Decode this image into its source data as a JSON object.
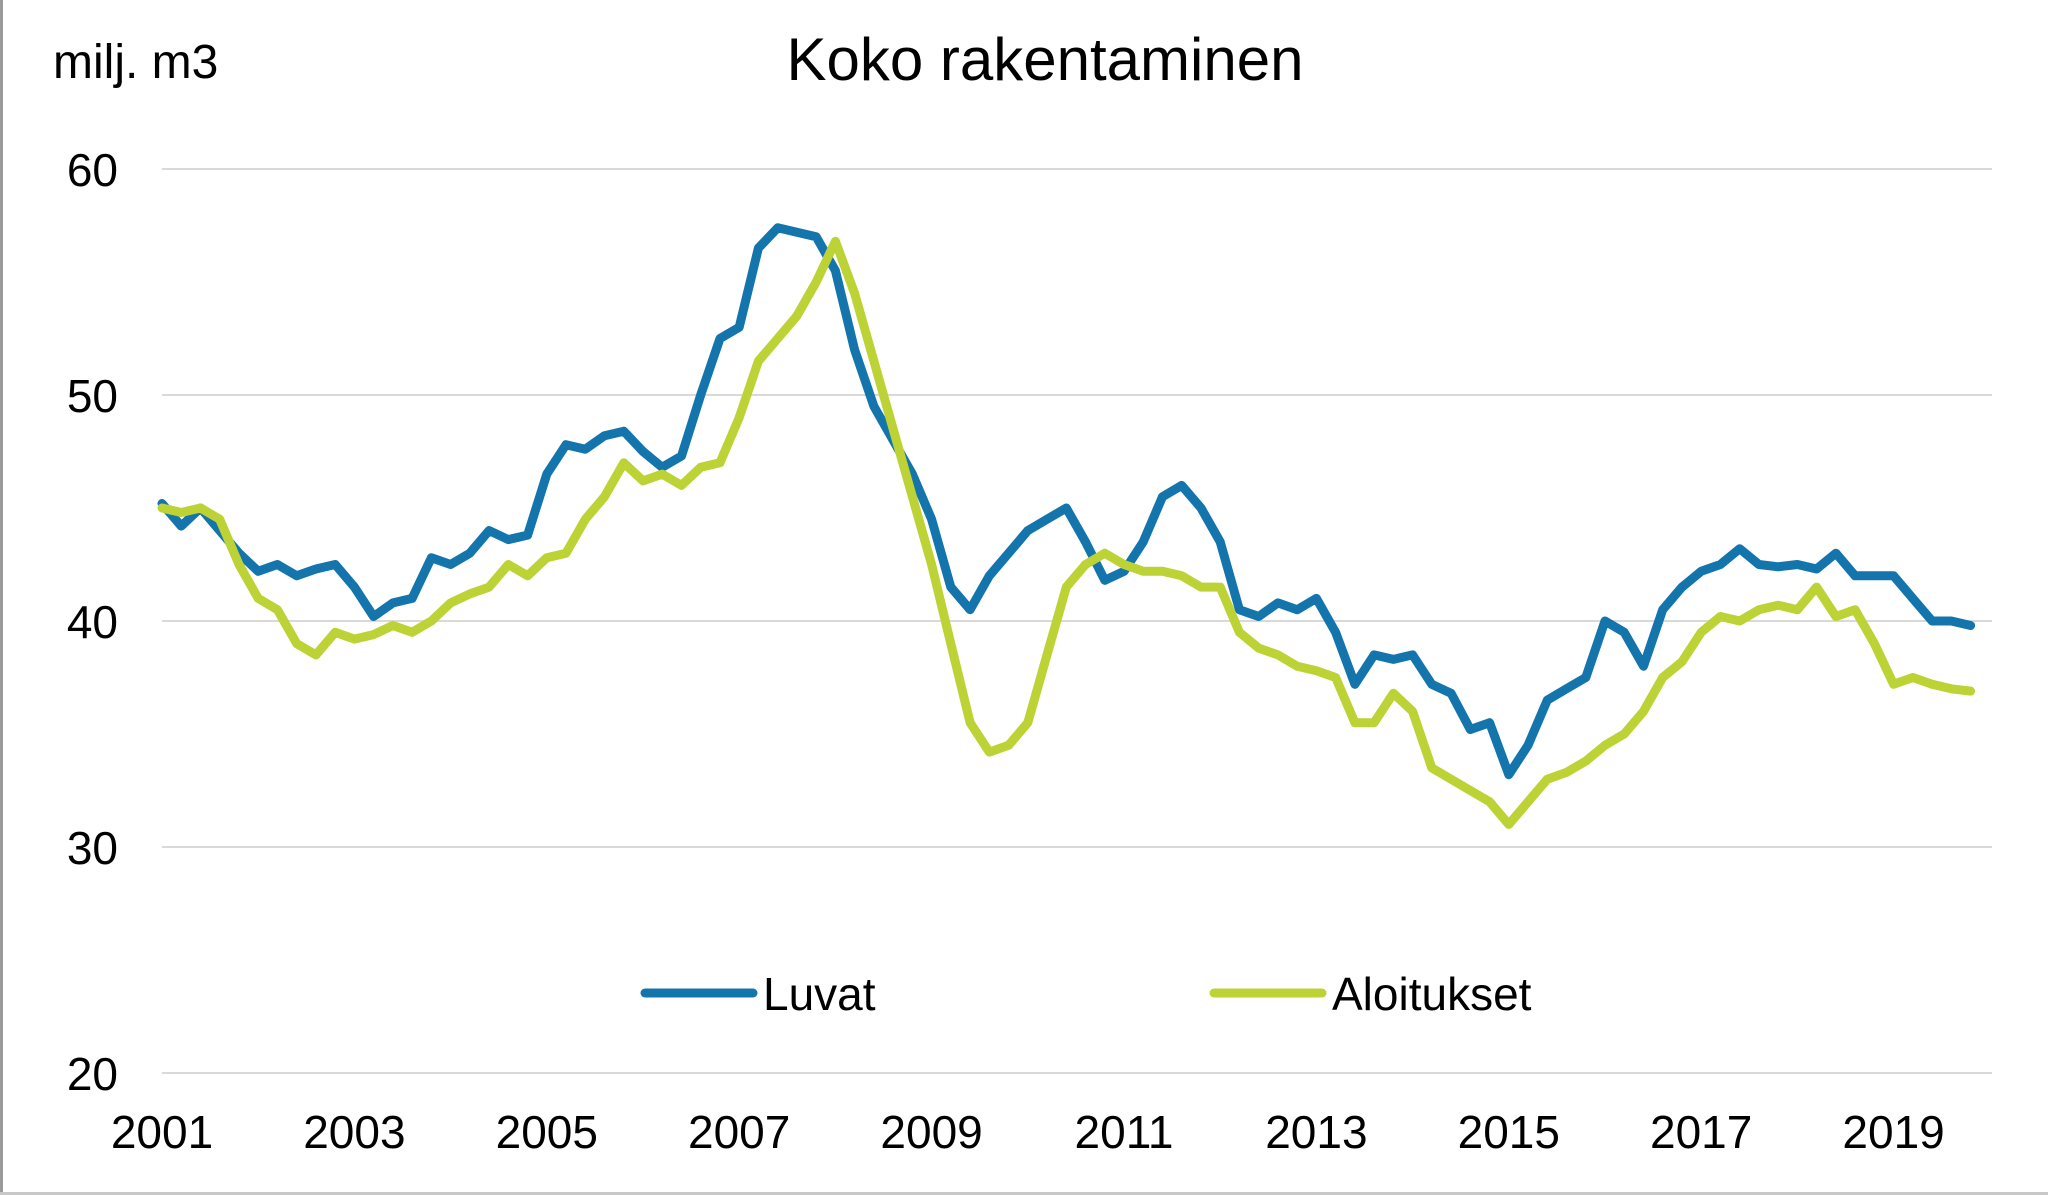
{
  "chart_data": {
    "type": "line",
    "title": "Koko rakentaminen",
    "ylabel": "milj. m3",
    "xlabel": "",
    "ylim": [
      20,
      60
    ],
    "xlim": [
      2001,
      2020
    ],
    "yticks": [
      "20",
      "30",
      "40",
      "50",
      "60"
    ],
    "ytick_values": [
      20,
      30,
      40,
      50,
      60
    ],
    "xticks": [
      "2001",
      "2003",
      "2005",
      "2007",
      "2009",
      "2011",
      "2013",
      "2015",
      "2017",
      "2019"
    ],
    "xtick_values": [
      2001,
      2003,
      2005,
      2007,
      2009,
      2011,
      2013,
      2015,
      2017,
      2019
    ],
    "grid": true,
    "legend_position": "bottom-center",
    "series": [
      {
        "name": "Luvat",
        "color": "#1474ac",
        "x": [
          2001.0,
          2001.2,
          2001.4,
          2001.6,
          2001.8,
          2002.0,
          2002.2,
          2002.4,
          2002.6,
          2002.8,
          2003.0,
          2003.2,
          2003.4,
          2003.6,
          2003.8,
          2004.0,
          2004.2,
          2004.4,
          2004.6,
          2004.8,
          2005.0,
          2005.2,
          2005.4,
          2005.6,
          2005.8,
          2006.0,
          2006.2,
          2006.4,
          2006.6,
          2006.8,
          2007.0,
          2007.2,
          2007.4,
          2007.6,
          2007.8,
          2008.0,
          2008.2,
          2008.4,
          2008.6,
          2008.8,
          2009.0,
          2009.2,
          2009.4,
          2009.6,
          2009.8,
          2010.0,
          2010.2,
          2010.4,
          2010.6,
          2010.8,
          2011.0,
          2011.2,
          2011.4,
          2011.6,
          2011.8,
          2012.0,
          2012.2,
          2012.4,
          2012.6,
          2012.8,
          2013.0,
          2013.2,
          2013.4,
          2013.6,
          2013.8,
          2014.0,
          2014.2,
          2014.4,
          2014.6,
          2014.8,
          2015.0,
          2015.2,
          2015.4,
          2015.6,
          2015.8,
          2016.0,
          2016.2,
          2016.4,
          2016.6,
          2016.8,
          2017.0,
          2017.2,
          2017.4,
          2017.6,
          2017.8,
          2018.0,
          2018.2,
          2018.4,
          2018.6,
          2018.8,
          2019.0,
          2019.2,
          2019.4,
          2019.6,
          2019.8
        ],
        "values": [
          45.2,
          44.2,
          45.0,
          44.0,
          43.0,
          42.2,
          42.5,
          42.0,
          42.3,
          42.5,
          41.5,
          40.2,
          40.8,
          41.0,
          42.8,
          42.5,
          43.0,
          44.0,
          43.6,
          43.8,
          46.5,
          47.8,
          47.6,
          48.2,
          48.4,
          47.5,
          46.8,
          47.3,
          50.0,
          52.5,
          53.0,
          56.5,
          57.4,
          57.2,
          57.0,
          55.5,
          52.0,
          49.5,
          48.0,
          46.5,
          44.5,
          41.5,
          40.5,
          42.0,
          43.0,
          44.0,
          44.5,
          45.0,
          43.5,
          41.8,
          42.2,
          43.5,
          45.5,
          46.0,
          45.0,
          43.5,
          40.5,
          40.2,
          40.8,
          40.5,
          41.0,
          39.5,
          37.2,
          38.5,
          38.3,
          38.5,
          37.2,
          36.8,
          35.2,
          35.5,
          33.2,
          34.5,
          36.5,
          37.0,
          37.5,
          40.0,
          39.5,
          38.0,
          40.5,
          41.5,
          42.2,
          42.5,
          43.2,
          42.5,
          42.4,
          42.5,
          42.3,
          43.0,
          42.0,
          42.0,
          42.0,
          41.0,
          40.0,
          40.0,
          39.8
        ]
      },
      {
        "name": "Aloitukset",
        "color": "#bcd235",
        "x": [
          2001.0,
          2001.2,
          2001.4,
          2001.6,
          2001.8,
          2002.0,
          2002.2,
          2002.4,
          2002.6,
          2002.8,
          2003.0,
          2003.2,
          2003.4,
          2003.6,
          2003.8,
          2004.0,
          2004.2,
          2004.4,
          2004.6,
          2004.8,
          2005.0,
          2005.2,
          2005.4,
          2005.6,
          2005.8,
          2006.0,
          2006.2,
          2006.4,
          2006.6,
          2006.8,
          2007.0,
          2007.2,
          2007.4,
          2007.6,
          2007.8,
          2008.0,
          2008.2,
          2008.4,
          2008.6,
          2008.8,
          2009.0,
          2009.2,
          2009.4,
          2009.6,
          2009.8,
          2010.0,
          2010.2,
          2010.4,
          2010.6,
          2010.8,
          2011.0,
          2011.2,
          2011.4,
          2011.6,
          2011.8,
          2012.0,
          2012.2,
          2012.4,
          2012.6,
          2012.8,
          2013.0,
          2013.2,
          2013.4,
          2013.6,
          2013.8,
          2014.0,
          2014.2,
          2014.4,
          2014.6,
          2014.8,
          2015.0,
          2015.2,
          2015.4,
          2015.6,
          2015.8,
          2016.0,
          2016.2,
          2016.4,
          2016.6,
          2016.8,
          2017.0,
          2017.2,
          2017.4,
          2017.6,
          2017.8,
          2018.0,
          2018.2,
          2018.4,
          2018.6,
          2018.8,
          2019.0,
          2019.2,
          2019.4,
          2019.6,
          2019.8
        ],
        "values": [
          45.0,
          44.8,
          45.0,
          44.5,
          42.5,
          41.0,
          40.5,
          39.0,
          38.5,
          39.5,
          39.2,
          39.4,
          39.8,
          39.5,
          40.0,
          40.8,
          41.2,
          41.5,
          42.5,
          42.0,
          42.8,
          43.0,
          44.5,
          45.5,
          47.0,
          46.2,
          46.5,
          46.0,
          46.8,
          47.0,
          49.0,
          51.5,
          52.5,
          53.5,
          55.0,
          56.8,
          54.5,
          51.5,
          48.5,
          45.5,
          42.5,
          39.0,
          35.5,
          34.2,
          34.5,
          35.5,
          38.5,
          41.5,
          42.5,
          43.0,
          42.5,
          42.2,
          42.2,
          42.0,
          41.5,
          41.5,
          39.5,
          38.8,
          38.5,
          38.0,
          37.8,
          37.5,
          35.5,
          35.5,
          36.8,
          36.0,
          33.5,
          33.0,
          32.5,
          32.0,
          31.0,
          32.0,
          33.0,
          33.3,
          33.8,
          34.5,
          35.0,
          36.0,
          37.5,
          38.2,
          39.5,
          40.2,
          40.0,
          40.5,
          40.7,
          40.5,
          41.5,
          40.2,
          40.5,
          39.0,
          37.2,
          37.5,
          37.2,
          37.0,
          36.9
        ]
      }
    ]
  }
}
